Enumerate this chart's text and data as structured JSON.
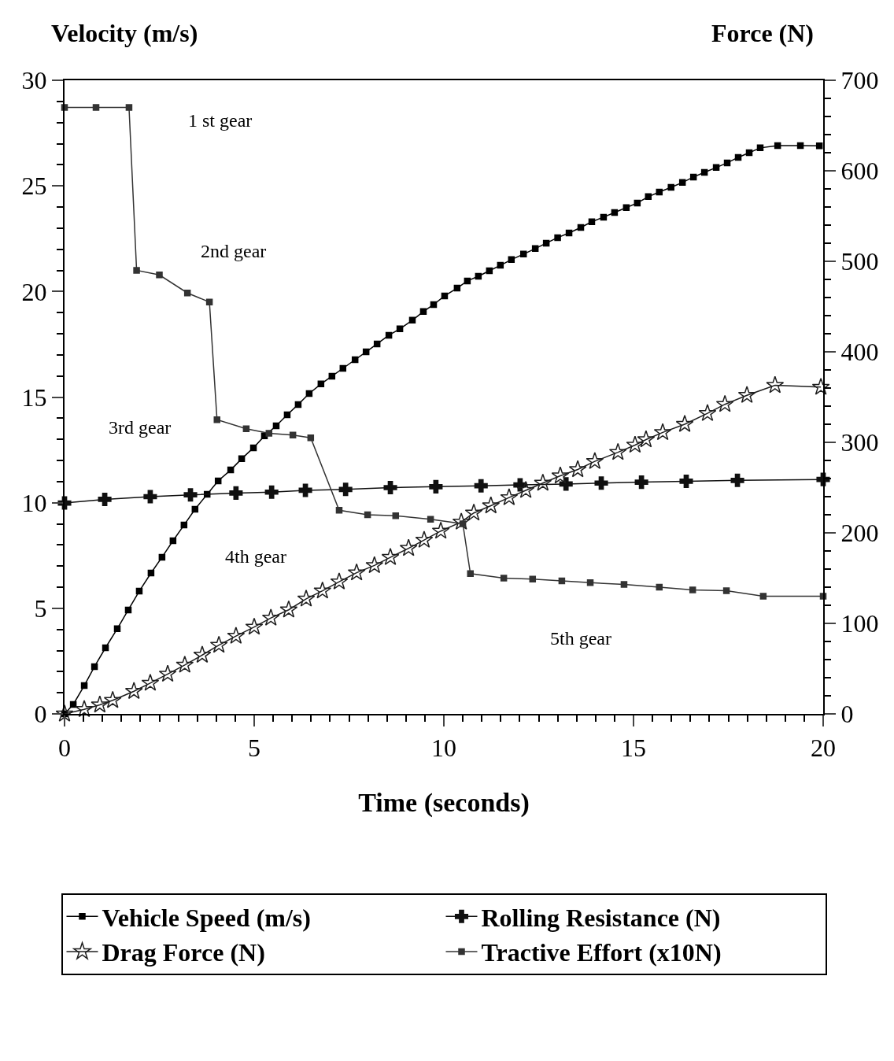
{
  "chart_data": {
    "type": "line",
    "xlabel": "Time (seconds)",
    "ylabel": "Velocity (m/s)",
    "y2label": "Force (N)",
    "xlim": [
      0,
      20
    ],
    "xticks": [
      0,
      5,
      10,
      15,
      20,
      {
        "value": 0.5,
        "label": null
      },
      {
        "value": 1,
        "label": null
      },
      {
        "value": 1.5,
        "label": null
      },
      {
        "value": 2,
        "label": null
      },
      {
        "value": 2.5,
        "label": null
      },
      {
        "value": 3,
        "label": null
      },
      {
        "value": 3.5,
        "label": null
      },
      {
        "value": 4,
        "label": null
      },
      {
        "value": 4.5,
        "label": null
      },
      {
        "value": 5.5,
        "label": null
      },
      {
        "value": 6,
        "label": null
      },
      {
        "value": 6.5,
        "label": null
      },
      {
        "value": 7,
        "label": null
      },
      {
        "value": 7.5,
        "label": null
      },
      {
        "value": 8,
        "label": null
      },
      {
        "value": 8.5,
        "label": null
      },
      {
        "value": 9,
        "label": null
      },
      {
        "value": 9.5,
        "label": null
      },
      {
        "value": 10.5,
        "label": null
      },
      {
        "value": 11,
        "label": null
      },
      {
        "value": 11.5,
        "label": null
      },
      {
        "value": 12,
        "label": null
      },
      {
        "value": 12.5,
        "label": null
      },
      {
        "value": 13,
        "label": null
      },
      {
        "value": 13.5,
        "label": null
      },
      {
        "value": 14,
        "label": null
      },
      {
        "value": 14.5,
        "label": null
      },
      {
        "value": 15.5,
        "label": null
      },
      {
        "value": 16,
        "label": null
      },
      {
        "value": 16.5,
        "label": null
      },
      {
        "value": 17,
        "label": null
      },
      {
        "value": 17.5,
        "label": null
      },
      {
        "value": 18,
        "label": null
      },
      {
        "value": 18.5,
        "label": null
      },
      {
        "value": 19,
        "label": null
      },
      {
        "value": 19.5,
        "label": null
      }
    ],
    "ylim": [
      0,
      30
    ],
    "yticks": [
      0,
      5,
      10,
      15,
      20,
      25,
      30,
      {
        "value": 1,
        "label": null
      },
      {
        "value": 2,
        "label": null
      },
      {
        "value": 3,
        "label": null
      },
      {
        "value": 4,
        "label": null
      },
      {
        "value": 6,
        "label": null
      },
      {
        "value": 7,
        "label": null
      },
      {
        "value": 8,
        "label": null
      },
      {
        "value": 9,
        "label": null
      },
      {
        "value": 11,
        "label": null
      },
      {
        "value": 12,
        "label": null
      },
      {
        "value": 13,
        "label": null
      },
      {
        "value": 14,
        "label": null
      },
      {
        "value": 16,
        "label": null
      },
      {
        "value": 17,
        "label": null
      },
      {
        "value": 18,
        "label": null
      },
      {
        "value": 19,
        "label": null
      },
      {
        "value": 21,
        "label": null
      },
      {
        "value": 22,
        "label": null
      },
      {
        "value": 23,
        "label": null
      },
      {
        "value": 24,
        "label": null
      },
      {
        "value": 26,
        "label": null
      },
      {
        "value": 27,
        "label": null
      },
      {
        "value": 28,
        "label": null
      },
      {
        "value": 29,
        "label": null
      }
    ],
    "y2lim": [
      0,
      700
    ],
    "y2ticks": [
      0,
      100,
      200,
      300,
      400,
      500,
      600,
      700,
      {
        "value": 20,
        "label": null
      },
      {
        "value": 40,
        "label": null
      },
      {
        "value": 60,
        "label": null
      },
      {
        "value": 80,
        "label": null
      },
      {
        "value": 120,
        "label": null
      },
      {
        "value": 140,
        "label": null
      },
      {
        "value": 160,
        "label": null
      },
      {
        "value": 180,
        "label": null
      },
      {
        "value": 220,
        "label": null
      },
      {
        "value": 240,
        "label": null
      },
      {
        "value": 260,
        "label": null
      },
      {
        "value": 280,
        "label": null
      },
      {
        "value": 320,
        "label": null
      },
      {
        "value": 340,
        "label": null
      },
      {
        "value": 360,
        "label": null
      },
      {
        "value": 380,
        "label": null
      },
      {
        "value": 420,
        "label": null
      },
      {
        "value": 440,
        "label": null
      },
      {
        "value": 460,
        "label": null
      },
      {
        "value": 480,
        "label": null
      },
      {
        "value": 520,
        "label": null
      },
      {
        "value": 540,
        "label": null
      },
      {
        "value": 560,
        "label": null
      },
      {
        "value": 580,
        "label": null
      },
      {
        "value": 620,
        "label": null
      },
      {
        "value": 640,
        "label": null
      },
      {
        "value": 660,
        "label": null
      },
      {
        "value": 680,
        "label": null
      }
    ],
    "legend": "bottom",
    "series": [
      {
        "name": "Vehicle Speed (m/s)",
        "color": "#000000",
        "marker": "square",
        "x": [
          0,
          0.23,
          0.52,
          0.79,
          1.08,
          1.39,
          1.68,
          1.97,
          2.28,
          2.57,
          2.86,
          3.15,
          3.44,
          3.76,
          4.05,
          4.38,
          4.67,
          4.98,
          5.27,
          5.58,
          5.87,
          6.16,
          6.45,
          6.76,
          7.05,
          7.34,
          7.66,
          7.95,
          8.24,
          8.55,
          8.84,
          9.17,
          9.46,
          9.73,
          10.02,
          10.35,
          10.62,
          10.91,
          11.2,
          11.49,
          11.78,
          12.1,
          12.41,
          12.7,
          13.0,
          13.3,
          13.61,
          13.9,
          14.21,
          14.5,
          14.81,
          15.1,
          15.39,
          15.68,
          15.99,
          16.29,
          16.58,
          16.87,
          17.18,
          17.47,
          17.76,
          18.05,
          18.34,
          18.8,
          19.4,
          19.9
        ],
        "values": [
          0,
          0.45,
          1.34,
          2.24,
          3.13,
          4.03,
          4.92,
          5.81,
          6.67,
          7.42,
          8.2,
          8.94,
          9.69,
          10.4,
          11.03,
          11.55,
          12.08,
          12.6,
          13.16,
          13.64,
          14.16,
          14.65,
          15.17,
          15.62,
          15.99,
          16.36,
          16.77,
          17.14,
          17.52,
          17.93,
          18.23,
          18.64,
          19.05,
          19.38,
          19.79,
          20.16,
          20.5,
          20.72,
          20.98,
          21.24,
          21.51,
          21.77,
          22.03,
          22.29,
          22.55,
          22.77,
          23.03,
          23.3,
          23.52,
          23.74,
          23.97,
          24.19,
          24.49,
          24.71,
          24.93,
          25.16,
          25.42,
          25.64,
          25.87,
          26.09,
          26.35,
          26.57,
          26.8,
          26.91,
          26.91,
          26.9
        ]
      },
      {
        "name": "Rolling Resistance (N)",
        "color": "#101010",
        "marker": "cross",
        "axis": "y2",
        "x": [
          0,
          1.06,
          2.26,
          3.32,
          4.52,
          5.46,
          6.35,
          7.41,
          8.59,
          9.79,
          10.98,
          12.01,
          13.22,
          14.15,
          15.21,
          16.39,
          17.74,
          20
        ],
        "values": [
          233,
          237,
          240,
          242,
          244,
          245,
          247,
          248,
          250,
          251,
          252,
          253,
          254,
          255,
          256,
          257,
          258,
          259
        ]
      },
      {
        "name": "Drag Force (N)",
        "color": "#1e1e1e",
        "marker": "star",
        "axis": "y2",
        "x": [
          0,
          0.52,
          0.93,
          1.27,
          1.83,
          2.26,
          2.72,
          3.17,
          3.63,
          4.07,
          4.52,
          5.0,
          5.44,
          5.91,
          6.37,
          6.8,
          7.24,
          7.7,
          8.17,
          8.59,
          9.07,
          9.48,
          9.92,
          10.46,
          10.79,
          11.24,
          11.72,
          12.16,
          12.61,
          13.07,
          13.53,
          13.98,
          14.59,
          15.04,
          15.33,
          15.77,
          16.35,
          16.95,
          17.41,
          17.99,
          18.73,
          19.94
        ],
        "values": [
          0,
          5,
          10,
          15,
          25,
          34,
          44,
          54,
          65,
          76,
          86,
          96,
          106,
          115,
          127,
          136,
          146,
          156,
          164,
          173,
          183,
          192,
          202,
          212,
          222,
          230,
          239,
          247,
          255,
          263,
          270,
          279,
          289,
          297,
          303,
          311,
          320,
          332,
          342,
          352,
          363,
          361
        ]
      },
      {
        "name": "Tractive Effort (x10N)",
        "color": "#333333",
        "marker": "square",
        "axis": "y2",
        "x": [
          0,
          0.83,
          1.7,
          1.9,
          2.5,
          3.24,
          3.82,
          4.02,
          4.79,
          5.39,
          6.02,
          6.49,
          7.24,
          7.99,
          8.73,
          9.65,
          10.5,
          10.7,
          11.58,
          12.34,
          13.11,
          13.86,
          14.75,
          15.68,
          16.56,
          17.45,
          18.42,
          20
        ],
        "values": [
          670,
          670,
          670,
          490,
          485,
          465,
          455,
          325,
          315,
          310,
          308,
          305,
          225,
          220,
          219,
          215,
          210,
          155,
          150,
          149,
          147,
          145,
          143,
          140,
          137,
          136,
          130,
          130
        ]
      }
    ],
    "annotations": [
      "1 st gear",
      "2nd gear",
      "3rd gear",
      "4th gear",
      "5th gear"
    ]
  }
}
